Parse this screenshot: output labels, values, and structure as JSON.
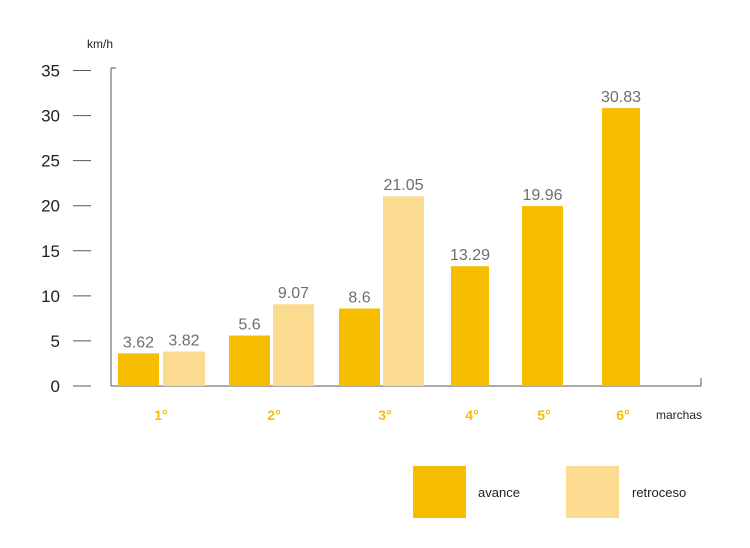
{
  "colors": {
    "avance": "#f7bd00",
    "retroceso": "#fbdb8f",
    "category_label": "#f7bd00",
    "axis": "#555555",
    "value_label": "#6e6e6e"
  },
  "chart_data": {
    "type": "bar",
    "xlabel": "marchas",
    "ylabel": "km/h",
    "ylim": [
      0,
      35
    ],
    "yticks": [
      0,
      5,
      10,
      15,
      20,
      25,
      30,
      35
    ],
    "categories": [
      "1°",
      "2°",
      "3°",
      "4°",
      "5°",
      "6°"
    ],
    "series": [
      {
        "name": "avance",
        "values": [
          3.62,
          5.6,
          8.6,
          13.29,
          19.96,
          30.83
        ]
      },
      {
        "name": "retroceso",
        "values": [
          3.82,
          9.07,
          21.05,
          null,
          null,
          null
        ]
      }
    ],
    "data_labels": {
      "avance": [
        "3.62",
        "5.6",
        "8.6",
        "13.29",
        "19.96",
        "30.83"
      ],
      "retroceso": [
        "3.82",
        "9.07",
        "21.05",
        null,
        null,
        null
      ]
    },
    "legend": {
      "placement": "bottom-right",
      "entries": [
        "avance",
        "retroceso"
      ]
    },
    "grid": false
  }
}
